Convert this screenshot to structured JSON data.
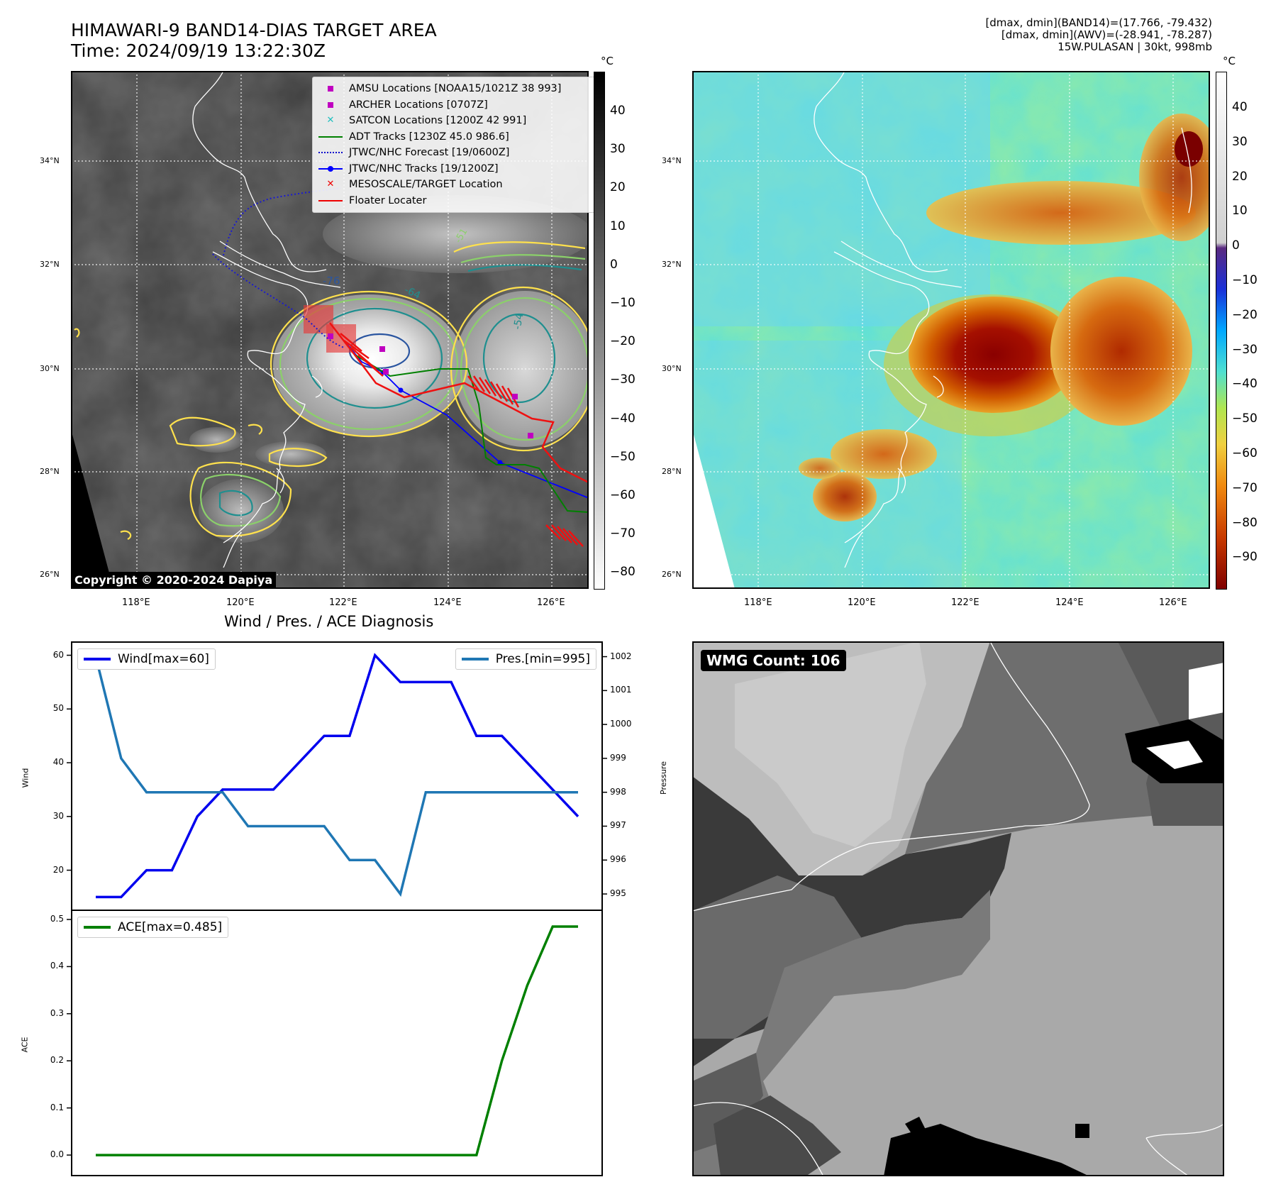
{
  "titles": {
    "main_line1": "HIMAWARI-9 BAND14-DIAS TARGET AREA",
    "main_line2": "Time: 2024/09/19 13:22:30Z",
    "info_line1": "[dmax, dmin](BAND14)=(17.766, -79.432)",
    "info_line2": "[dmax, dmin](AWV)=(-28.941, -78.287)",
    "info_line3": "15W.PULASAN | 30kt, 998mb",
    "diag_title": "Wind / Pres. / ACE Diagnosis"
  },
  "map": {
    "lat_labels": [
      "34°N",
      "32°N",
      "30°N",
      "28°N",
      "26°N"
    ],
    "lon_labels": [
      "118°E",
      "120°E",
      "122°E",
      "124°E",
      "126°E"
    ],
    "contour_labels": [
      "-76",
      "-64",
      "-54",
      "-51"
    ],
    "copyright": "Copyright © 2020-2024 Dapiya",
    "legend": [
      {
        "label": "AMSU Locations [NOAA15/1021Z 38 993]",
        "color": "#c000c0",
        "symbol": "square"
      },
      {
        "label": "ARCHER Locations [0707Z]",
        "color": "#c000c0",
        "symbol": "square"
      },
      {
        "label": "SATCON Locations [1200Z 42 991]",
        "color": "#1fbfbf",
        "symbol": "x"
      },
      {
        "label": "ADT Tracks [1230Z 45.0 986.6]",
        "color": "#008000",
        "symbol": "line"
      },
      {
        "label": "JTWC/NHC Forecast [19/0600Z]",
        "color": "#0000cc",
        "symbol": "dotted"
      },
      {
        "label": "JTWC/NHC Tracks [19/1200Z]",
        "color": "#0000ff",
        "symbol": "line-dot"
      },
      {
        "label": "MESOSCALE/TARGET Location",
        "color": "#ee0000",
        "symbol": "x"
      },
      {
        "label": "Floater Locater",
        "color": "#ee0000",
        "symbol": "line"
      }
    ]
  },
  "colorbars": {
    "unit": "°C",
    "band14_ticks": [
      "40",
      "30",
      "20",
      "10",
      "0",
      "−10",
      "−20",
      "−30",
      "−40",
      "−50",
      "−60",
      "−70",
      "−80"
    ],
    "awv_ticks": [
      "40",
      "30",
      "20",
      "10",
      "0",
      "−10",
      "−20",
      "−30",
      "−40",
      "−50",
      "−60",
      "−70",
      "−80",
      "−90"
    ]
  },
  "wmg": {
    "label": "WMG Count: 106"
  },
  "chart_data": [
    {
      "type": "line",
      "x": [
        0,
        1,
        2,
        3,
        4,
        5,
        6,
        7,
        8,
        9,
        10,
        11,
        12,
        13,
        14,
        15,
        16,
        17,
        18,
        19
      ],
      "series": [
        {
          "name": "Wind[max=60]",
          "color": "#0000ee",
          "axis": "left",
          "values": [
            15,
            15,
            20,
            20,
            30,
            35,
            35,
            35,
            40,
            45,
            45,
            60,
            55,
            55,
            55,
            45,
            45,
            40,
            35,
            30
          ]
        },
        {
          "name": "Pres.[min=995]",
          "color": "#1f77b4",
          "axis": "right",
          "values": [
            1002,
            999,
            998,
            998,
            998,
            998,
            997,
            997,
            997,
            997,
            996,
            996,
            995,
            998,
            998,
            998,
            998,
            998,
            998,
            998
          ]
        }
      ],
      "ylabel": "Wind",
      "y2label": "Pressure",
      "ylim": [
        14,
        61
      ],
      "y2lim": [
        994.75,
        1002.2
      ],
      "yticks": [
        20,
        30,
        40,
        50,
        60
      ],
      "y2ticks": [
        995,
        996,
        997,
        998,
        999,
        1000,
        1001,
        1002
      ],
      "legend": [
        "upper left",
        "upper right"
      ]
    },
    {
      "type": "line",
      "x": [
        0,
        1,
        2,
        3,
        4,
        5,
        6,
        7,
        8,
        9,
        10,
        11,
        12,
        13,
        14,
        15,
        16,
        17,
        18,
        19
      ],
      "series": [
        {
          "name": "ACE[max=0.485]",
          "color": "#008000",
          "values": [
            0,
            0,
            0,
            0,
            0,
            0,
            0,
            0,
            0,
            0,
            0,
            0,
            0,
            0,
            0,
            0,
            0.2,
            0.36,
            0.485,
            0.485
          ]
        }
      ],
      "ylabel": "ACE",
      "ylim": [
        -0.024,
        0.5
      ],
      "yticks": [
        "0.0",
        "0.1",
        "0.2",
        "0.3",
        "0.4",
        "0.5"
      ],
      "legend": "upper left"
    }
  ]
}
